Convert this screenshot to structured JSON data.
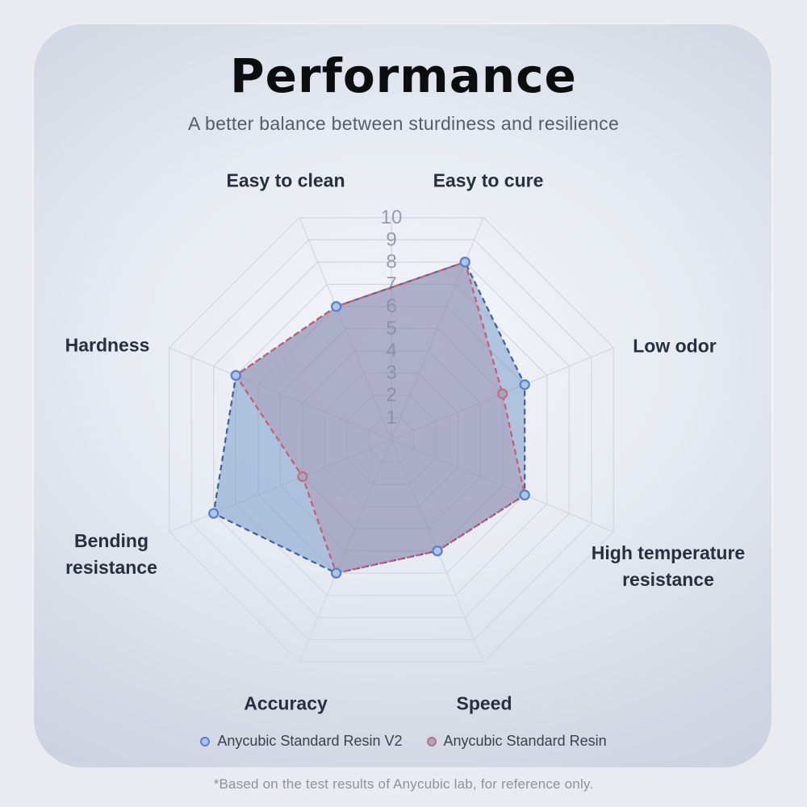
{
  "header": {
    "title": "Performance",
    "subtitle": "A better balance between sturdiness and resilience"
  },
  "chart_data": {
    "type": "radar",
    "categories": [
      "Easy to clean",
      "Easy to cure",
      "Low odor",
      "High temperature resistance",
      "Speed",
      "Accuracy",
      "Bending resistance",
      "Hardness"
    ],
    "scale": {
      "min": 0,
      "max": 10,
      "ticks": [
        1,
        2,
        3,
        4,
        5,
        6,
        7,
        8,
        9,
        10
      ]
    },
    "series": [
      {
        "name": "Anycubic Standard Resin V2",
        "values": [
          6,
          8,
          6,
          6,
          5,
          6,
          8,
          7
        ],
        "stroke": "#3f5f9f",
        "fill": "rgba(111,149,197,0.50)",
        "dot_fill": "#a9c6ec",
        "dot_stroke": "#5a81c8",
        "line_style": "dashed"
      },
      {
        "name": "Anycubic Standard Resin",
        "values": [
          6,
          8,
          5,
          6,
          5,
          6,
          4,
          7
        ],
        "stroke": "#cc5a70",
        "fill": "rgba(170,120,145,0.28)",
        "dot_fill": "#a2aac2",
        "dot_stroke": "#c96b80",
        "line_style": "dashed"
      }
    ],
    "grid": "octagon-web",
    "grid_color": "#d5d8de",
    "tick_color": "#979da6",
    "legend_position": "bottom"
  },
  "footnote": "*Based on the test results of Anycubic lab, for reference only."
}
